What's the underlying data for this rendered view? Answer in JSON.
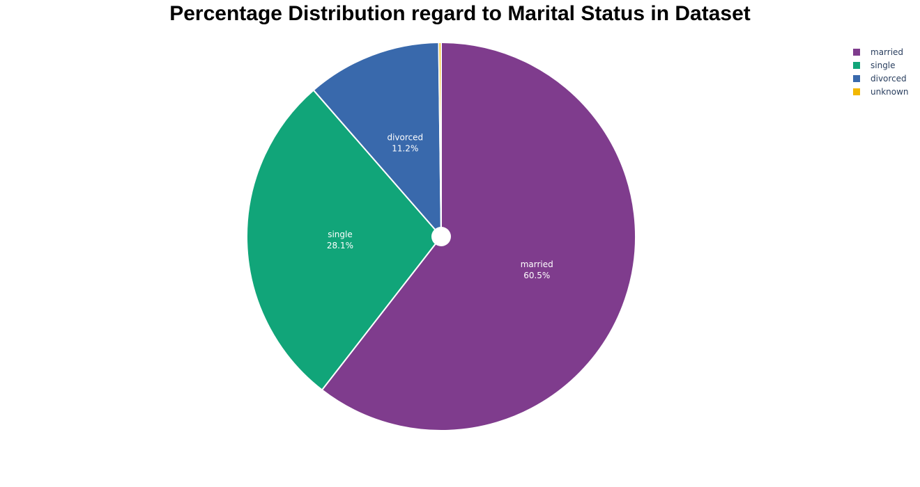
{
  "chart_data": {
    "type": "pie",
    "title": "Percentage Distribution regard to Marital Status in Dataset",
    "slices": [
      {
        "label": "married",
        "value": 60.5,
        "value_text": "60.5%",
        "color": "#7f3c8d"
      },
      {
        "label": "single",
        "value": 28.1,
        "value_text": "28.1%",
        "color": "#11a579"
      },
      {
        "label": "divorced",
        "value": 11.2,
        "value_text": "11.2%",
        "color": "#3969ac"
      },
      {
        "label": "unknown",
        "value": 0.2,
        "value_text": "",
        "color": "#f2b701"
      }
    ],
    "hole": "small",
    "direction": "clockwise",
    "start": "top",
    "legend_position": "top-right"
  }
}
